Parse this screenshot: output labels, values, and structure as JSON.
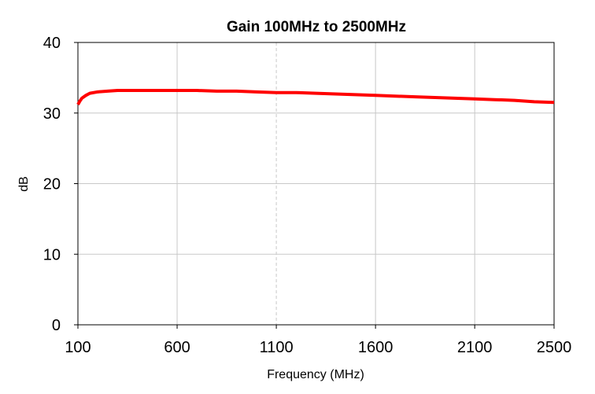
{
  "chart_data": {
    "type": "line",
    "title": "Gain 100MHz to 2500MHz",
    "xlabel": "Frequency (MHz)",
    "ylabel": "dB",
    "xlim": [
      100,
      2500
    ],
    "ylim": [
      0,
      40
    ],
    "xticks": [
      100,
      600,
      1100,
      1600,
      2100,
      2500
    ],
    "yticks": [
      0,
      10,
      20,
      30,
      40
    ],
    "grid": true,
    "series": [
      {
        "color": "#ff0000",
        "x": [
          100,
          110,
          120,
          140,
          160,
          200,
          250,
          300,
          350,
          400,
          500,
          600,
          700,
          800,
          900,
          1000,
          1100,
          1200,
          1300,
          1400,
          1500,
          1600,
          1700,
          1800,
          1900,
          2000,
          2100,
          2200,
          2300,
          2400,
          2500
        ],
        "y": [
          31.2,
          31.7,
          32.1,
          32.5,
          32.8,
          33.0,
          33.1,
          33.2,
          33.2,
          33.2,
          33.2,
          33.2,
          33.2,
          33.1,
          33.1,
          33.0,
          32.9,
          32.9,
          32.8,
          32.7,
          32.6,
          32.5,
          32.4,
          32.3,
          32.2,
          32.1,
          32.0,
          31.9,
          31.8,
          31.6,
          31.5
        ]
      }
    ]
  }
}
